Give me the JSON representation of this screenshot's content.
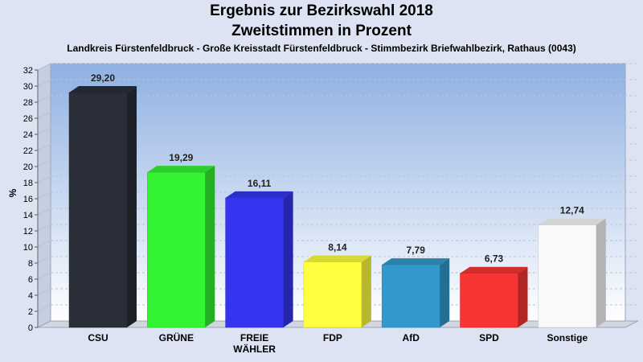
{
  "chart_data": {
    "type": "bar",
    "title": "Ergebnis zur Bezirkswahl 2018",
    "subtitle_line": "Zweitstimmen in Prozent",
    "subtitle": "Landkreis Fürstenfeldbruck - Große Kreisstadt Fürstenfeldbruck - Stimmbezirk Briefwahlbezirk, Rathaus (0043)",
    "ylabel": "%",
    "ylim": [
      0,
      32
    ],
    "ytick_step": 2,
    "grid": true,
    "categories": [
      [
        "CSU"
      ],
      [
        "GRÜNE"
      ],
      [
        "FREIE",
        "WÄHLER"
      ],
      [
        "FDP"
      ],
      [
        "AfD"
      ],
      [
        "SPD"
      ],
      [
        "Sonstige"
      ]
    ],
    "values": [
      29.2,
      19.29,
      16.11,
      8.14,
      7.79,
      6.73,
      12.74
    ],
    "value_labels": [
      "29,20",
      "19,29",
      "16,11",
      "8,14",
      "7,79",
      "6,73",
      "12,74"
    ],
    "colors": [
      "#2a2e38",
      "#33f333",
      "#3535f0",
      "#ffff40",
      "#3399cc",
      "#f73535",
      "#f9f9fb"
    ]
  }
}
